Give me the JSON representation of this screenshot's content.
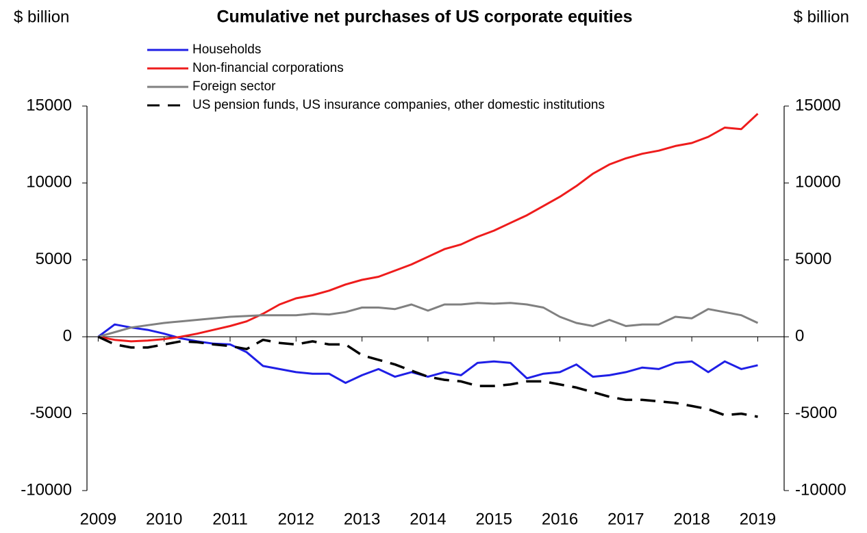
{
  "chart_data": {
    "type": "line",
    "title": "Cumulative net purchases of US corporate equities",
    "ylabel": "$ billion",
    "y2label": "$ billion",
    "x": [
      2009,
      2009.25,
      2009.5,
      2009.75,
      2010,
      2010.25,
      2010.5,
      2010.75,
      2011,
      2011.25,
      2011.5,
      2011.75,
      2012,
      2012.25,
      2012.5,
      2012.75,
      2013,
      2013.25,
      2013.5,
      2013.75,
      2014,
      2014.25,
      2014.5,
      2014.75,
      2015,
      2015.25,
      2015.5,
      2015.75,
      2016,
      2016.25,
      2016.5,
      2016.75,
      2017,
      2017.25,
      2017.5,
      2017.75,
      2018,
      2018.25,
      2018.5,
      2018.75,
      2019
    ],
    "series": [
      {
        "name": "Households",
        "color": "#1f1fe6",
        "values": [
          0,
          800,
          600,
          450,
          200,
          -100,
          -300,
          -450,
          -500,
          -1000,
          -1900,
          -2100,
          -2300,
          -2400,
          -2400,
          -3000,
          -2500,
          -2100,
          -2600,
          -2300,
          -2600,
          -2300,
          -2500,
          -1700,
          -1600,
          -1700,
          -2700,
          -2400,
          -2300,
          -1800,
          -2600,
          -2500,
          -2300,
          -2000,
          -2100,
          -1700,
          -1600,
          -2300,
          -1600,
          -2100,
          -1850
        ]
      },
      {
        "name": "Non-financial corporations",
        "color": "#ee1c1c",
        "values": [
          0,
          -200,
          -300,
          -250,
          -150,
          0,
          200,
          450,
          700,
          1000,
          1500,
          2100,
          2500,
          2700,
          3000,
          3400,
          3700,
          3900,
          4300,
          4700,
          5200,
          5700,
          6000,
          6500,
          6900,
          7400,
          7900,
          8500,
          9100,
          9800,
          10600,
          11200,
          11600,
          11900,
          12100,
          12400,
          12600,
          13000,
          13600,
          13500,
          14500
        ]
      },
      {
        "name": "Foreign sector",
        "color": "#808080",
        "values": [
          0,
          300,
          600,
          750,
          900,
          1000,
          1100,
          1200,
          1300,
          1350,
          1400,
          1400,
          1400,
          1500,
          1450,
          1600,
          1900,
          1900,
          1800,
          2100,
          1700,
          2100,
          2100,
          2200,
          2150,
          2200,
          2100,
          1900,
          1300,
          900,
          700,
          1100,
          700,
          800,
          800,
          1300,
          1200,
          1800,
          1600,
          1400,
          900
        ]
      },
      {
        "name": "US pension funds, US insurance companies, other domestic institutions",
        "color": "#000000",
        "dashed": true,
        "values": [
          0,
          -500,
          -700,
          -700,
          -500,
          -300,
          -350,
          -500,
          -600,
          -800,
          -200,
          -400,
          -500,
          -300,
          -500,
          -500,
          -1200,
          -1500,
          -1800,
          -2200,
          -2600,
          -2800,
          -2900,
          -3200,
          -3200,
          -3100,
          -2900,
          -2900,
          -3100,
          -3300,
          -3600,
          -3900,
          -4100,
          -4100,
          -4200,
          -4300,
          -4500,
          -4700,
          -5100,
          -5000,
          -5200
        ]
      }
    ],
    "xlim": [
      2008.83,
      2019.4
    ],
    "xticks": [
      2009,
      2010,
      2011,
      2012,
      2013,
      2014,
      2015,
      2016,
      2017,
      2018,
      2019
    ],
    "ylim": [
      -10000,
      15000
    ],
    "yticks": [
      -10000,
      -5000,
      0,
      5000,
      10000,
      15000
    ],
    "y2lim": [
      -10000,
      15000
    ],
    "y2ticks": [
      -10000,
      -5000,
      0,
      5000,
      10000,
      15000
    ],
    "legend": "upper left"
  }
}
